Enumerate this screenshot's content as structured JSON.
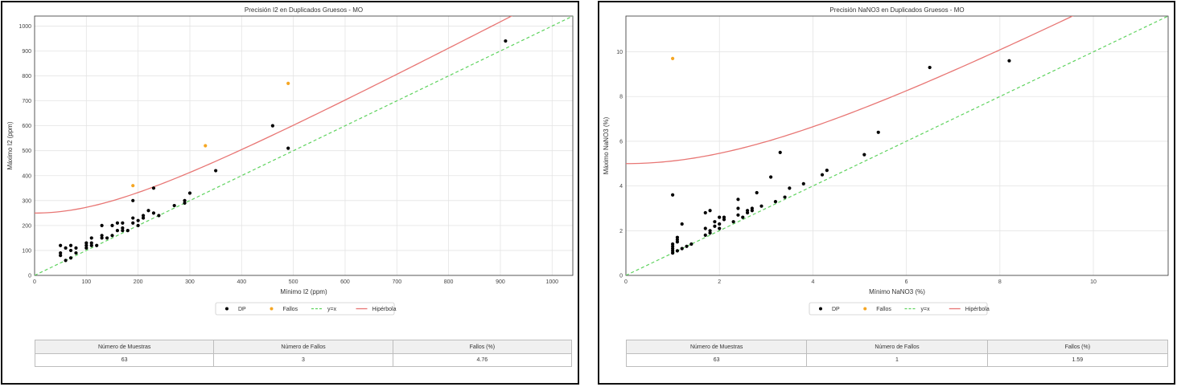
{
  "colors": {
    "dp": "#000000",
    "fallos": "#f5a623",
    "identity": "#5fd35f",
    "hyperbola": "#e87674",
    "grid": "#e4e4e4"
  },
  "charts": [
    {
      "id": "left",
      "chart_data": {
        "type": "scatter",
        "title": "Precisión I2 en Duplicados Gruesos - MO",
        "xlabel": "Mínimo I2 (ppm)",
        "ylabel": "Máximo I2 (ppm)",
        "xlim": [
          0,
          1040
        ],
        "ylim": [
          0,
          1040
        ],
        "xticks": [
          0,
          100,
          200,
          300,
          400,
          500,
          600,
          700,
          800,
          900,
          1000
        ],
        "yticks": [
          0,
          100,
          200,
          300,
          400,
          500,
          600,
          700,
          800,
          900,
          1000
        ],
        "grid": true,
        "legend_position": "bottom-center",
        "legend": [
          "DP",
          "Fallos",
          "y=x",
          "Hipérbola"
        ],
        "series": [
          {
            "name": "DP",
            "kind": "scatter",
            "points": [
              [
                50,
                120
              ],
              [
                50,
                90
              ],
              [
                50,
                80
              ],
              [
                60,
                110
              ],
              [
                60,
                60
              ],
              [
                70,
                120
              ],
              [
                70,
                100
              ],
              [
                70,
                70
              ],
              [
                80,
                110
              ],
              [
                80,
                90
              ],
              [
                100,
                130
              ],
              [
                100,
                120
              ],
              [
                100,
                110
              ],
              [
                110,
                150
              ],
              [
                110,
                130
              ],
              [
                110,
                120
              ],
              [
                120,
                120
              ],
              [
                130,
                200
              ],
              [
                130,
                160
              ],
              [
                130,
                150
              ],
              [
                140,
                150
              ],
              [
                150,
                200
              ],
              [
                150,
                160
              ],
              [
                160,
                210
              ],
              [
                160,
                180
              ],
              [
                170,
                210
              ],
              [
                170,
                190
              ],
              [
                170,
                180
              ],
              [
                180,
                180
              ],
              [
                190,
                300
              ],
              [
                190,
                230
              ],
              [
                190,
                210
              ],
              [
                200,
                220
              ],
              [
                200,
                200
              ],
              [
                210,
                230
              ],
              [
                210,
                240
              ],
              [
                220,
                260
              ],
              [
                230,
                350
              ],
              [
                230,
                250
              ],
              [
                240,
                240
              ],
              [
                270,
                280
              ],
              [
                290,
                300
              ],
              [
                290,
                290
              ],
              [
                300,
                330
              ],
              [
                350,
                420
              ],
              [
                460,
                600
              ],
              [
                490,
                510
              ],
              [
                910,
                940
              ]
            ]
          },
          {
            "name": "Fallos",
            "kind": "scatter",
            "points": [
              [
                190,
                360
              ],
              [
                330,
                520
              ],
              [
                490,
                770
              ]
            ]
          },
          {
            "name": "y=x",
            "kind": "line",
            "points": [
              [
                0,
                0
              ],
              [
                1040,
                1040
              ]
            ]
          },
          {
            "name": "Hipérbola",
            "kind": "hyperbola",
            "a": 250,
            "b": 1.0,
            "domain": [
              0,
              1040
            ]
          }
        ]
      },
      "table": {
        "headers": [
          "Número de Muestras",
          "Número de Fallos",
          "Fallos (%)"
        ],
        "values": [
          "63",
          "3",
          "4.76"
        ]
      }
    },
    {
      "id": "right",
      "chart_data": {
        "type": "scatter",
        "title": "Precisión NaNO3 en Duplicados Gruesos - MO",
        "xlabel": "Mínimo NaNO3 (%)",
        "ylabel": "Máximo NaNO3 (%)",
        "xlim": [
          0,
          11.6
        ],
        "ylim": [
          0,
          11.6
        ],
        "xticks": [
          0,
          2,
          4,
          6,
          8,
          10
        ],
        "yticks": [
          0,
          2,
          4,
          6,
          8,
          10
        ],
        "grid": true,
        "legend_position": "bottom-center",
        "legend": [
          "DP",
          "Fallos",
          "y=x",
          "Hipérbola"
        ],
        "series": [
          {
            "name": "DP",
            "kind": "scatter",
            "points": [
              [
                1.0,
                3.6
              ],
              [
                1.0,
                1.4
              ],
              [
                1.0,
                1.3
              ],
              [
                1.0,
                1.2
              ],
              [
                1.0,
                1.1
              ],
              [
                1.0,
                1.0
              ],
              [
                1.1,
                1.7
              ],
              [
                1.1,
                1.6
              ],
              [
                1.1,
                1.5
              ],
              [
                1.1,
                1.1
              ],
              [
                1.2,
                2.3
              ],
              [
                1.2,
                1.2
              ],
              [
                1.3,
                1.3
              ],
              [
                1.4,
                1.4
              ],
              [
                1.7,
                2.8
              ],
              [
                1.7,
                2.1
              ],
              [
                1.7,
                1.8
              ],
              [
                1.8,
                2.9
              ],
              [
                1.8,
                2.0
              ],
              [
                1.8,
                1.9
              ],
              [
                1.9,
                2.4
              ],
              [
                1.9,
                2.2
              ],
              [
                2.0,
                2.6
              ],
              [
                2.0,
                2.3
              ],
              [
                2.0,
                2.1
              ],
              [
                2.1,
                2.6
              ],
              [
                2.1,
                2.5
              ],
              [
                2.3,
                2.4
              ],
              [
                2.4,
                3.4
              ],
              [
                2.4,
                3.0
              ],
              [
                2.4,
                2.7
              ],
              [
                2.5,
                2.6
              ],
              [
                2.6,
                2.9
              ],
              [
                2.6,
                2.8
              ],
              [
                2.7,
                3.0
              ],
              [
                2.7,
                2.9
              ],
              [
                2.8,
                3.7
              ],
              [
                2.9,
                3.1
              ],
              [
                3.1,
                4.4
              ],
              [
                3.2,
                3.3
              ],
              [
                3.3,
                5.5
              ],
              [
                3.4,
                3.5
              ],
              [
                3.5,
                3.9
              ],
              [
                3.8,
                4.1
              ],
              [
                4.2,
                4.5
              ],
              [
                4.3,
                4.7
              ],
              [
                5.1,
                5.4
              ],
              [
                5.4,
                6.4
              ],
              [
                6.5,
                9.3
              ],
              [
                8.2,
                9.6
              ]
            ]
          },
          {
            "name": "Fallos",
            "kind": "scatter",
            "points": [
              [
                1.0,
                9.7
              ]
            ]
          },
          {
            "name": "y=x",
            "kind": "line",
            "points": [
              [
                0,
                0
              ],
              [
                11.6,
                11.6
              ]
            ]
          },
          {
            "name": "Hipérbola",
            "kind": "hyperbola",
            "a": 5,
            "b": 1.0,
            "domain": [
              0,
              11.6
            ]
          }
        ]
      },
      "table": {
        "headers": [
          "Número de Muestras",
          "Número de Fallos",
          "Fallos (%)"
        ],
        "values": [
          "63",
          "1",
          "1.59"
        ]
      }
    }
  ]
}
